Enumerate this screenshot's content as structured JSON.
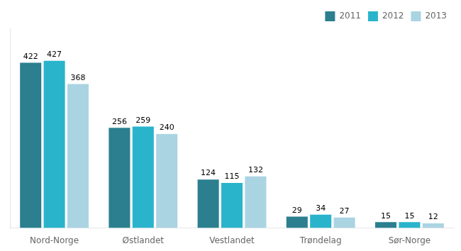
{
  "chart_data": {
    "type": "bar",
    "categories": [
      "Nord-Norge",
      "Østlandet",
      "Vestlandet",
      "Trøndelag",
      "Sør-Norge"
    ],
    "series": [
      {
        "name": "2011",
        "color": "#2b7f8e",
        "values": [
          422,
          256,
          124,
          29,
          15
        ]
      },
      {
        "name": "2012",
        "color": "#29b4cc",
        "values": [
          427,
          259,
          115,
          34,
          15
        ]
      },
      {
        "name": "2013",
        "color": "#aad4e2",
        "values": [
          368,
          240,
          132,
          27,
          12
        ]
      }
    ],
    "ylim": [
      0,
      510
    ],
    "grid": false,
    "legend": "upper right",
    "data_labels": true,
    "tick_labels": "x"
  }
}
